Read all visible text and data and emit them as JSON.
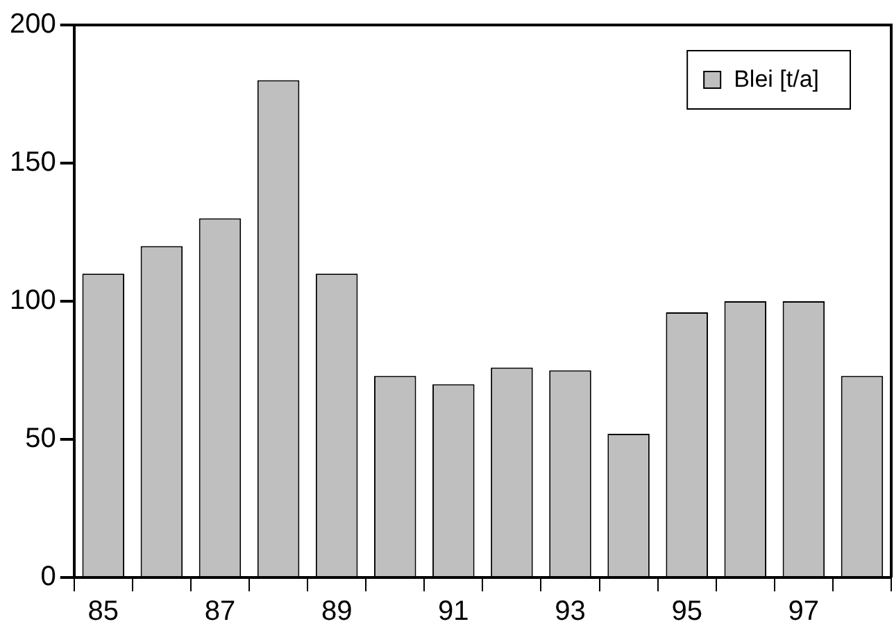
{
  "chart_data": {
    "type": "bar",
    "categories": [
      "85",
      null,
      "87",
      null,
      "89",
      null,
      "91",
      null,
      "93",
      null,
      "95",
      null,
      "97",
      null
    ],
    "series": [
      {
        "name": "Blei [t/a]",
        "color": "#bfbfbf",
        "values": [
          110,
          120,
          130,
          180,
          110,
          73,
          70,
          76,
          75,
          52,
          96,
          100,
          100,
          73
        ]
      }
    ],
    "ylim": [
      0,
      200
    ],
    "yticks": [
      0,
      50,
      100,
      150,
      200
    ],
    "grid": false,
    "legend": "top right"
  }
}
